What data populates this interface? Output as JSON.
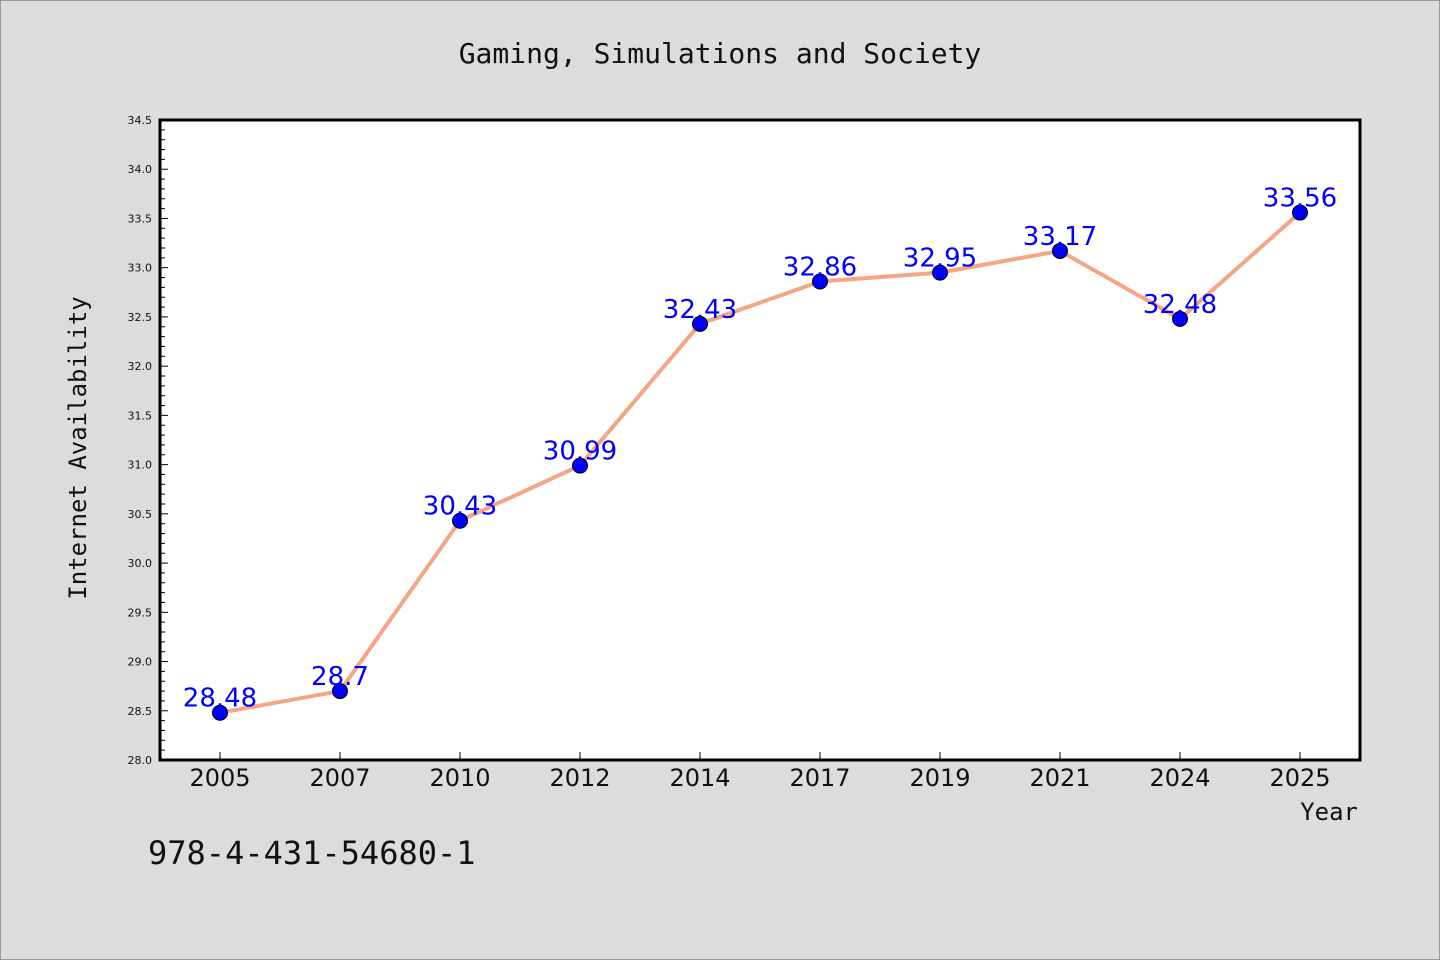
{
  "chart_data": {
    "type": "line",
    "title": "Gaming, Simulations and Society",
    "xlabel": "Year",
    "ylabel": "Internet Availability",
    "categories": [
      "2005",
      "2007",
      "2010",
      "2012",
      "2014",
      "2017",
      "2019",
      "2021",
      "2024",
      "2025"
    ],
    "series": [
      {
        "values": [
          28.48,
          28.7,
          30.43,
          30.99,
          32.43,
          32.86,
          32.95,
          33.17,
          32.48,
          33.56
        ]
      }
    ],
    "data_labels": [
      "28.48",
      "28.7",
      "30.43",
      "30.99",
      "32.43",
      "32.86",
      "32.95",
      "33.17",
      "32.48",
      "33.56"
    ],
    "y_ticks": [
      "28.0",
      "28.5",
      "29.0",
      "29.5",
      "30.0",
      "30.5",
      "31.0",
      "31.5",
      "32.0",
      "32.5",
      "33.0",
      "33.5",
      "34.0",
      "34.5"
    ],
    "ylim": [
      28.0,
      34.5
    ],
    "grid": false,
    "colors": {
      "line": "#f4a582",
      "marker": "#0000ff",
      "label": "#0000ff",
      "background": "#dcdcdc",
      "plot_bg": "#ffffff"
    }
  },
  "annotation": {
    "isbn": "978-4-431-54680-1"
  }
}
